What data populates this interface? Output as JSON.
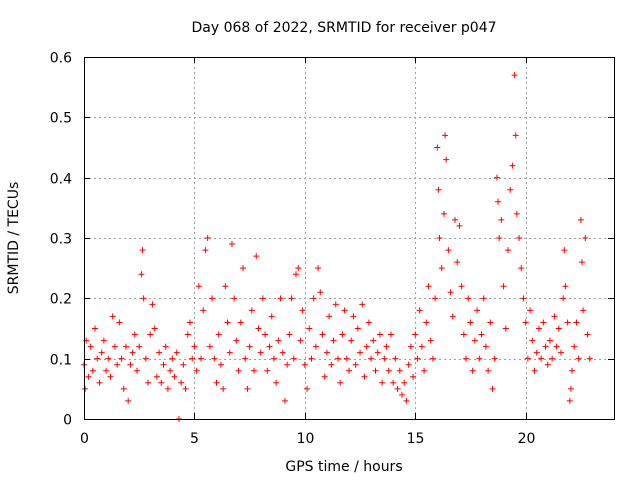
{
  "chart_data": {
    "type": "scatter",
    "title": "Day 068 of 2022, SRMTID for receiver p047",
    "xlabel": "GPS time / hours",
    "ylabel": "SRMTID / TECUs",
    "xlim": [
      0,
      24
    ],
    "ylim": [
      0,
      0.6
    ],
    "xticks": [
      0,
      5,
      10,
      15,
      20
    ],
    "xtick_labels": [
      "0",
      "5",
      "10",
      "15",
      "20"
    ],
    "yticks": [
      0,
      0.1,
      0.2,
      0.3,
      0.4,
      0.5,
      0.6
    ],
    "ytick_labels": [
      "0",
      "0.1",
      "0.2",
      "0.3",
      "0.4",
      "0.5",
      "0.6"
    ],
    "grid": true,
    "marker": "+",
    "color": "#ff0000",
    "series": [
      {
        "name": "SRMTID",
        "points": [
          [
            0.0,
            0.09
          ],
          [
            0.05,
            0.05
          ],
          [
            0.1,
            0.13
          ],
          [
            0.2,
            0.07
          ],
          [
            0.3,
            0.12
          ],
          [
            0.4,
            0.08
          ],
          [
            0.5,
            0.15
          ],
          [
            0.6,
            0.1
          ],
          [
            0.7,
            0.06
          ],
          [
            0.8,
            0.11
          ],
          [
            0.9,
            0.13
          ],
          [
            1.0,
            0.08
          ],
          [
            1.1,
            0.1
          ],
          [
            1.2,
            0.07
          ],
          [
            1.3,
            0.17
          ],
          [
            1.4,
            0.12
          ],
          [
            1.5,
            0.09
          ],
          [
            1.6,
            0.16
          ],
          [
            1.7,
            0.1
          ],
          [
            1.8,
            0.05
          ],
          [
            1.9,
            0.12
          ],
          [
            2.0,
            0.03
          ],
          [
            2.1,
            0.09
          ],
          [
            2.2,
            0.11
          ],
          [
            2.3,
            0.14
          ],
          [
            2.4,
            0.08
          ],
          [
            2.5,
            0.12
          ],
          [
            2.6,
            0.24
          ],
          [
            2.65,
            0.28
          ],
          [
            2.7,
            0.2
          ],
          [
            2.8,
            0.1
          ],
          [
            2.9,
            0.06
          ],
          [
            3.0,
            0.14
          ],
          [
            3.1,
            0.19
          ],
          [
            3.2,
            0.15
          ],
          [
            3.3,
            0.07
          ],
          [
            3.4,
            0.11
          ],
          [
            3.5,
            0.06
          ],
          [
            3.6,
            0.09
          ],
          [
            3.7,
            0.12
          ],
          [
            3.8,
            0.05
          ],
          [
            3.9,
            0.08
          ],
          [
            4.0,
            0.1
          ],
          [
            4.1,
            0.07
          ],
          [
            4.2,
            0.11
          ],
          [
            4.3,
            0.0
          ],
          [
            4.4,
            0.06
          ],
          [
            4.5,
            0.09
          ],
          [
            4.6,
            0.05
          ],
          [
            4.7,
            0.14
          ],
          [
            4.8,
            0.16
          ],
          [
            4.9,
            0.1
          ],
          [
            5.0,
            0.12
          ],
          [
            5.1,
            0.08
          ],
          [
            5.2,
            0.22
          ],
          [
            5.3,
            0.1
          ],
          [
            5.4,
            0.18
          ],
          [
            5.5,
            0.28
          ],
          [
            5.6,
            0.3
          ],
          [
            5.7,
            0.12
          ],
          [
            5.8,
            0.2
          ],
          [
            5.9,
            0.1
          ],
          [
            6.0,
            0.06
          ],
          [
            6.1,
            0.14
          ],
          [
            6.2,
            0.09
          ],
          [
            6.3,
            0.05
          ],
          [
            6.4,
            0.22
          ],
          [
            6.5,
            0.16
          ],
          [
            6.6,
            0.11
          ],
          [
            6.7,
            0.29
          ],
          [
            6.8,
            0.2
          ],
          [
            6.9,
            0.13
          ],
          [
            7.0,
            0.08
          ],
          [
            7.1,
            0.16
          ],
          [
            7.2,
            0.25
          ],
          [
            7.3,
            0.1
          ],
          [
            7.4,
            0.05
          ],
          [
            7.5,
            0.12
          ],
          [
            7.6,
            0.18
          ],
          [
            7.7,
            0.08
          ],
          [
            7.8,
            0.27
          ],
          [
            7.9,
            0.15
          ],
          [
            8.0,
            0.11
          ],
          [
            8.1,
            0.2
          ],
          [
            8.2,
            0.14
          ],
          [
            8.3,
            0.08
          ],
          [
            8.4,
            0.12
          ],
          [
            8.5,
            0.17
          ],
          [
            8.6,
            0.1
          ],
          [
            8.7,
            0.06
          ],
          [
            8.8,
            0.13
          ],
          [
            8.9,
            0.2
          ],
          [
            9.0,
            0.11
          ],
          [
            9.1,
            0.03
          ],
          [
            9.2,
            0.09
          ],
          [
            9.3,
            0.14
          ],
          [
            9.4,
            0.2
          ],
          [
            9.5,
            0.1
          ],
          [
            9.6,
            0.24
          ],
          [
            9.7,
            0.25
          ],
          [
            9.8,
            0.13
          ],
          [
            9.9,
            0.18
          ],
          [
            10.0,
            0.09
          ],
          [
            10.1,
            0.05
          ],
          [
            10.2,
            0.15
          ],
          [
            10.3,
            0.1
          ],
          [
            10.4,
            0.2
          ],
          [
            10.5,
            0.12
          ],
          [
            10.6,
            0.25
          ],
          [
            10.7,
            0.21
          ],
          [
            10.8,
            0.14
          ],
          [
            10.9,
            0.07
          ],
          [
            11.0,
            0.11
          ],
          [
            11.1,
            0.17
          ],
          [
            11.2,
            0.09
          ],
          [
            11.3,
            0.13
          ],
          [
            11.4,
            0.19
          ],
          [
            11.5,
            0.1
          ],
          [
            11.6,
            0.06
          ],
          [
            11.7,
            0.14
          ],
          [
            11.8,
            0.18
          ],
          [
            11.9,
            0.1
          ],
          [
            12.0,
            0.08
          ],
          [
            12.1,
            0.13
          ],
          [
            12.2,
            0.17
          ],
          [
            12.3,
            0.09
          ],
          [
            12.4,
            0.15
          ],
          [
            12.5,
            0.11
          ],
          [
            12.6,
            0.19
          ],
          [
            12.7,
            0.07
          ],
          [
            12.8,
            0.12
          ],
          [
            12.9,
            0.16
          ],
          [
            13.0,
            0.1
          ],
          [
            13.1,
            0.13
          ],
          [
            13.2,
            0.08
          ],
          [
            13.3,
            0.11
          ],
          [
            13.4,
            0.14
          ],
          [
            13.5,
            0.06
          ],
          [
            13.6,
            0.1
          ],
          [
            13.7,
            0.12
          ],
          [
            13.8,
            0.08
          ],
          [
            13.9,
            0.14
          ],
          [
            14.0,
            0.06
          ],
          [
            14.1,
            0.1
          ],
          [
            14.2,
            0.05
          ],
          [
            14.3,
            0.08
          ],
          [
            14.4,
            0.04
          ],
          [
            14.5,
            0.06
          ],
          [
            14.6,
            0.03
          ],
          [
            14.7,
            0.09
          ],
          [
            14.8,
            0.12
          ],
          [
            14.9,
            0.07
          ],
          [
            15.0,
            0.14
          ],
          [
            15.1,
            0.1
          ],
          [
            15.2,
            0.18
          ],
          [
            15.3,
            0.12
          ],
          [
            15.4,
            0.08
          ],
          [
            15.5,
            0.16
          ],
          [
            15.6,
            0.22
          ],
          [
            15.7,
            0.13
          ],
          [
            15.8,
            0.1
          ],
          [
            15.9,
            0.2
          ],
          [
            16.0,
            0.45
          ],
          [
            16.05,
            0.38
          ],
          [
            16.1,
            0.3
          ],
          [
            16.2,
            0.25
          ],
          [
            16.3,
            0.34
          ],
          [
            16.35,
            0.47
          ],
          [
            16.4,
            0.43
          ],
          [
            16.5,
            0.28
          ],
          [
            16.6,
            0.21
          ],
          [
            16.7,
            0.17
          ],
          [
            16.8,
            0.33
          ],
          [
            16.9,
            0.26
          ],
          [
            17.0,
            0.32
          ],
          [
            17.1,
            0.22
          ],
          [
            17.2,
            0.14
          ],
          [
            17.3,
            0.1
          ],
          [
            17.4,
            0.2
          ],
          [
            17.5,
            0.16
          ],
          [
            17.6,
            0.08
          ],
          [
            17.7,
            0.13
          ],
          [
            17.8,
            0.18
          ],
          [
            17.9,
            0.1
          ],
          [
            18.0,
            0.14
          ],
          [
            18.1,
            0.2
          ],
          [
            18.2,
            0.12
          ],
          [
            18.3,
            0.08
          ],
          [
            18.4,
            0.16
          ],
          [
            18.5,
            0.05
          ],
          [
            18.6,
            0.1
          ],
          [
            18.7,
            0.4
          ],
          [
            18.75,
            0.36
          ],
          [
            18.8,
            0.3
          ],
          [
            18.9,
            0.33
          ],
          [
            19.0,
            0.22
          ],
          [
            19.1,
            0.15
          ],
          [
            19.2,
            0.28
          ],
          [
            19.3,
            0.38
          ],
          [
            19.4,
            0.42
          ],
          [
            19.5,
            0.57
          ],
          [
            19.55,
            0.47
          ],
          [
            19.6,
            0.34
          ],
          [
            19.7,
            0.3
          ],
          [
            19.8,
            0.25
          ],
          [
            19.9,
            0.2
          ],
          [
            20.0,
            0.16
          ],
          [
            20.1,
            0.1
          ],
          [
            20.2,
            0.18
          ],
          [
            20.3,
            0.13
          ],
          [
            20.4,
            0.08
          ],
          [
            20.5,
            0.11
          ],
          [
            20.6,
            0.15
          ],
          [
            20.7,
            0.1
          ],
          [
            20.8,
            0.16
          ],
          [
            20.9,
            0.12
          ],
          [
            21.0,
            0.09
          ],
          [
            21.1,
            0.13
          ],
          [
            21.2,
            0.1
          ],
          [
            21.3,
            0.17
          ],
          [
            21.4,
            0.12
          ],
          [
            21.5,
            0.15
          ],
          [
            21.6,
            0.11
          ],
          [
            21.7,
            0.2
          ],
          [
            21.75,
            0.28
          ],
          [
            21.8,
            0.22
          ],
          [
            21.9,
            0.16
          ],
          [
            22.0,
            0.03
          ],
          [
            22.05,
            0.05
          ],
          [
            22.1,
            0.08
          ],
          [
            22.2,
            0.12
          ],
          [
            22.3,
            0.16
          ],
          [
            22.4,
            0.1
          ],
          [
            22.5,
            0.33
          ],
          [
            22.55,
            0.26
          ],
          [
            22.6,
            0.18
          ],
          [
            22.7,
            0.3
          ],
          [
            22.8,
            0.14
          ],
          [
            22.9,
            0.1
          ]
        ]
      }
    ]
  }
}
